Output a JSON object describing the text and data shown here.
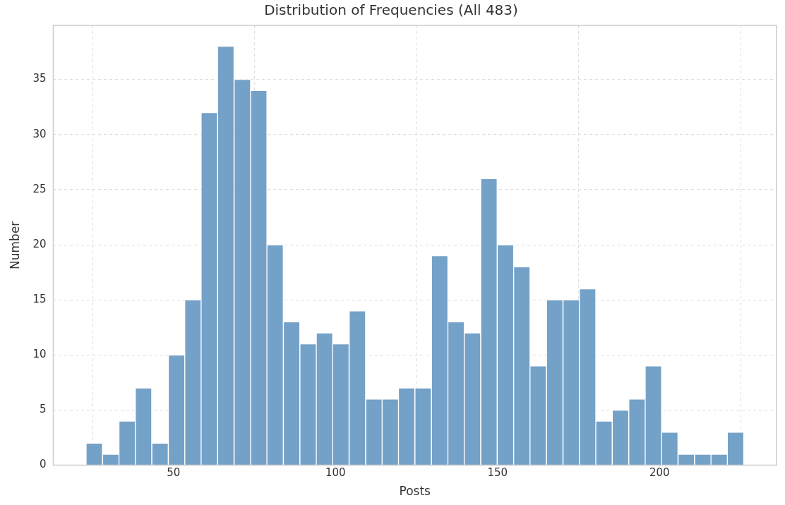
{
  "chart_data": {
    "type": "histogram",
    "title": "Distribution of Frequencies (All 483)",
    "xlabel": "Posts",
    "ylabel": "Number",
    "bins": [
      23.0,
      28.1,
      33.2,
      38.2,
      43.3,
      48.4,
      53.5,
      58.5,
      63.6,
      68.7,
      73.8,
      78.8,
      83.9,
      89.0,
      94.1,
      99.1,
      104.2,
      109.3,
      114.4,
      119.4,
      124.5,
      129.6,
      134.7,
      139.7,
      144.8,
      149.9,
      155.0,
      160.0,
      165.1,
      170.2,
      175.3,
      180.3,
      185.4,
      190.5,
      195.6,
      200.6,
      205.7,
      210.8,
      215.9,
      220.9,
      226.0
    ],
    "values": [
      2,
      1,
      4,
      7,
      2,
      10,
      15,
      32,
      38,
      35,
      34,
      20,
      13,
      11,
      12,
      11,
      14,
      6,
      6,
      7,
      7,
      19,
      13,
      12,
      26,
      20,
      18,
      9,
      15,
      15,
      16,
      4,
      5,
      6,
      9,
      3,
      1,
      1,
      1,
      3
    ],
    "color": "#74a1c7",
    "xlim": [
      12.9,
      236.1
    ],
    "xticks": [
      50,
      100,
      150,
      200
    ],
    "ylim": [
      0,
      39.9
    ],
    "yticks": [
      0,
      5,
      10,
      15,
      20,
      25,
      30,
      35
    ],
    "grid": true,
    "legend": false
  }
}
